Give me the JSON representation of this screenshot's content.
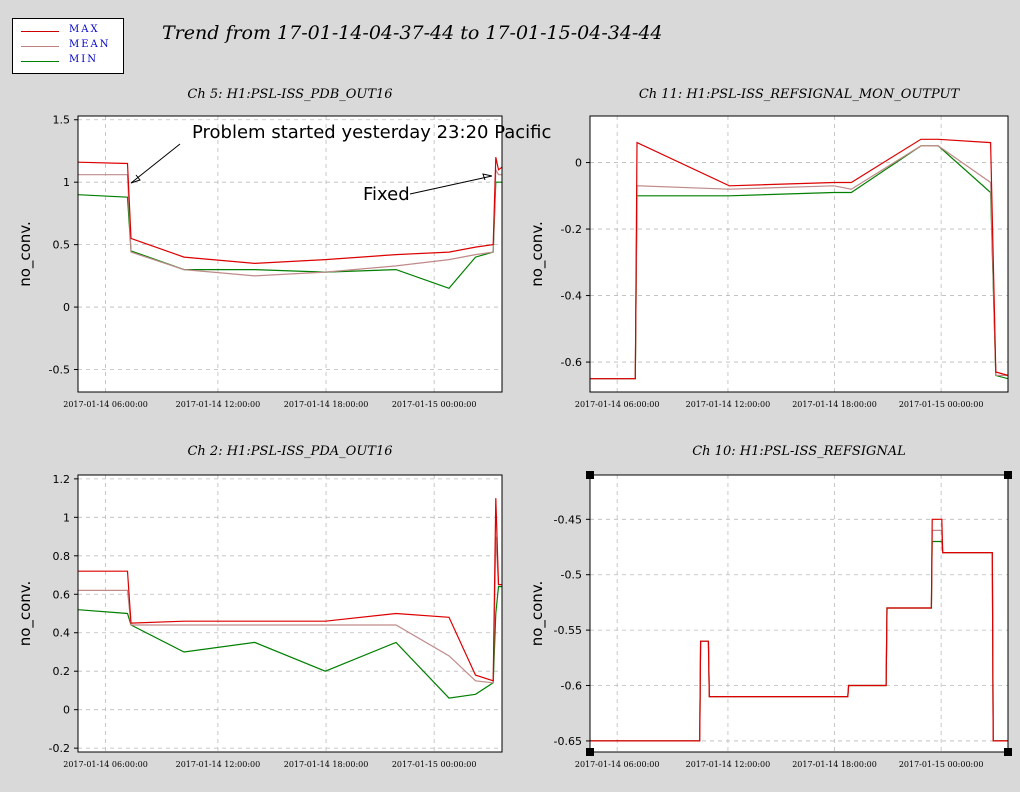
{
  "title": "Trend from 17-01-14-04-37-44 to 17-01-15-04-34-44",
  "legend": [
    {
      "label": "MAX",
      "color": "#cc0000"
    },
    {
      "label": "MEAN",
      "color": "#c08080"
    },
    {
      "label": "MIN",
      "color": "#008000"
    }
  ],
  "chart_data": [
    {
      "type": "line",
      "title": "Ch 5: H1:PSL-ISS_PDB_OUT16",
      "ylabel": "no_conv.",
      "xticks": [
        "2017-01-14 06:00:00",
        "2017-01-14 12:00:00",
        "2017-01-14 18:00:00",
        "2017-01-15 00:00:00"
      ],
      "ylim": [
        -0.68,
        1.53
      ],
      "yticks": [
        -0.5,
        0,
        0.5,
        1,
        1.5
      ],
      "ytick_labels": [
        "-0.5",
        "0",
        "0.5",
        "1",
        "1.5"
      ],
      "series": [
        {
          "name": "MAX",
          "x": [
            0,
            2.8,
            3.0,
            6,
            10,
            14,
            18,
            21,
            22.5,
            23.5,
            23.65,
            23.8,
            24
          ],
          "y": [
            1.16,
            1.15,
            0.55,
            0.4,
            0.35,
            0.38,
            0.42,
            0.44,
            0.48,
            0.5,
            1.2,
            1.1,
            1.12
          ]
        },
        {
          "name": "MEAN",
          "x": [
            0,
            2.8,
            3.0,
            6,
            10,
            14,
            18,
            21,
            22.5,
            23.5,
            23.65,
            23.8,
            24
          ],
          "y": [
            1.06,
            1.06,
            0.44,
            0.3,
            0.25,
            0.28,
            0.33,
            0.38,
            0.42,
            0.44,
            1.1,
            1.06,
            1.06
          ]
        },
        {
          "name": "MIN",
          "x": [
            0,
            2.8,
            3.0,
            6,
            10,
            14,
            18,
            21,
            22.5,
            23.5,
            23.65,
            23.8,
            24
          ],
          "y": [
            0.9,
            0.88,
            0.45,
            0.3,
            0.3,
            0.28,
            0.3,
            0.15,
            0.4,
            0.44,
            1.0,
            1.0,
            1.0
          ]
        }
      ],
      "annotations": [
        {
          "text": "Problem started yesterday 23:20 Pacific"
        },
        {
          "text": "Fixed"
        }
      ]
    },
    {
      "type": "line",
      "title": "Ch 11: H1:PSL-ISS_REFSIGNAL_MON_OUTPUT",
      "ylabel": "no_conv.",
      "xticks": [
        "2017-01-14 06:00:00",
        "2017-01-14 12:00:00",
        "2017-01-14 18:00:00",
        "2017-01-15 00:00:00"
      ],
      "ylim": [
        -0.69,
        0.14
      ],
      "yticks": [
        -0.6,
        -0.4,
        -0.2,
        0
      ],
      "ytick_labels": [
        "-0.6",
        "-0.4",
        "-0.2",
        "0"
      ],
      "series": [
        {
          "name": "MAX",
          "x": [
            0,
            2.6,
            2.7,
            8,
            14,
            15,
            19,
            20,
            23,
            23.3,
            24
          ],
          "y": [
            -0.65,
            -0.65,
            0.06,
            -0.07,
            -0.06,
            -0.06,
            0.07,
            0.07,
            0.06,
            -0.63,
            -0.64
          ]
        },
        {
          "name": "MEAN",
          "x": [
            0,
            2.6,
            2.7,
            8,
            14,
            15,
            19,
            20,
            23,
            23.3,
            24
          ],
          "y": [
            -0.65,
            -0.65,
            -0.07,
            -0.08,
            -0.07,
            -0.08,
            0.05,
            0.05,
            -0.06,
            -0.64,
            -0.64
          ]
        },
        {
          "name": "MIN",
          "x": [
            0,
            2.6,
            2.7,
            8,
            14,
            15,
            19,
            20,
            23,
            23.3,
            24
          ],
          "y": [
            -0.65,
            -0.65,
            -0.1,
            -0.1,
            -0.09,
            -0.09,
            0.05,
            0.05,
            -0.09,
            -0.64,
            -0.65
          ]
        }
      ]
    },
    {
      "type": "line",
      "title": "Ch 2: H1:PSL-ISS_PDA_OUT16",
      "ylabel": "no_conv.",
      "xticks": [
        "2017-01-14 06:00:00",
        "2017-01-14 12:00:00",
        "2017-01-14 18:00:00",
        "2017-01-15 00:00:00"
      ],
      "ylim": [
        -0.22,
        1.22
      ],
      "yticks": [
        -0.2,
        0,
        0.2,
        0.4,
        0.6,
        0.8,
        1,
        1.2
      ],
      "ytick_labels": [
        "-0.2",
        "0",
        "0.2",
        "0.4",
        "0.6",
        "0.8",
        "1",
        "1.2"
      ],
      "series": [
        {
          "name": "MAX",
          "x": [
            0,
            2.8,
            3.0,
            6,
            10,
            14,
            18,
            21,
            22.5,
            23.5,
            23.65,
            23.8,
            24
          ],
          "y": [
            0.72,
            0.72,
            0.45,
            0.46,
            0.46,
            0.46,
            0.5,
            0.48,
            0.18,
            0.15,
            1.1,
            0.65,
            0.65
          ]
        },
        {
          "name": "MEAN",
          "x": [
            0,
            2.8,
            3.0,
            6,
            10,
            14,
            18,
            21,
            22.5,
            23.5,
            23.65,
            23.8,
            24
          ],
          "y": [
            0.62,
            0.62,
            0.44,
            0.44,
            0.44,
            0.44,
            0.44,
            0.28,
            0.15,
            0.14,
            0.9,
            0.65,
            0.65
          ]
        },
        {
          "name": "MIN",
          "x": [
            0,
            2.8,
            3.0,
            6,
            10,
            14,
            18,
            21,
            22.5,
            23.5,
            23.65,
            23.8,
            24
          ],
          "y": [
            0.52,
            0.5,
            0.44,
            0.3,
            0.35,
            0.2,
            0.35,
            0.06,
            0.08,
            0.14,
            0.5,
            0.64,
            0.64
          ]
        }
      ]
    },
    {
      "type": "line",
      "title": "Ch 10: H1:PSL-ISS_REFSIGNAL",
      "ylabel": "no_conv.",
      "xticks": [
        "2017-01-14 06:00:00",
        "2017-01-14 12:00:00",
        "2017-01-14 18:00:00",
        "2017-01-15 00:00:00"
      ],
      "ylim": [
        -0.66,
        -0.41
      ],
      "yticks": [
        -0.65,
        -0.6,
        -0.55,
        -0.5,
        -0.45
      ],
      "ytick_labels": [
        "-0.65",
        "-0.6",
        "-0.55",
        "-0.5",
        "-0.45"
      ],
      "series": [
        {
          "name": "MAX",
          "x": [
            0,
            6.3,
            6.35,
            6.8,
            6.85,
            14.8,
            14.85,
            17,
            17.05,
            19.6,
            19.65,
            20.2,
            20.25,
            23.1,
            23.15,
            24
          ],
          "y": [
            -0.65,
            -0.65,
            -0.56,
            -0.56,
            -0.61,
            -0.61,
            -0.6,
            -0.6,
            -0.53,
            -0.53,
            -0.45,
            -0.45,
            -0.48,
            -0.48,
            -0.65,
            -0.65
          ]
        },
        {
          "name": "MEAN",
          "x": [
            0,
            6.3,
            6.35,
            6.8,
            6.85,
            14.8,
            14.85,
            17,
            17.05,
            19.6,
            19.65,
            20.2,
            20.25,
            23.1,
            23.15,
            24
          ],
          "y": [
            -0.65,
            -0.65,
            -0.56,
            -0.56,
            -0.61,
            -0.61,
            -0.6,
            -0.6,
            -0.53,
            -0.53,
            -0.46,
            -0.46,
            -0.48,
            -0.48,
            -0.65,
            -0.65
          ]
        },
        {
          "name": "MIN",
          "x": [
            0,
            6.3,
            6.35,
            6.8,
            6.85,
            14.8,
            14.85,
            17,
            17.05,
            19.6,
            19.65,
            20.2,
            20.25,
            23.1,
            23.15,
            24
          ],
          "y": [
            -0.65,
            -0.65,
            -0.56,
            -0.56,
            -0.61,
            -0.61,
            -0.6,
            -0.6,
            -0.53,
            -0.53,
            -0.47,
            -0.47,
            -0.48,
            -0.48,
            -0.65,
            -0.65
          ]
        }
      ]
    }
  ]
}
